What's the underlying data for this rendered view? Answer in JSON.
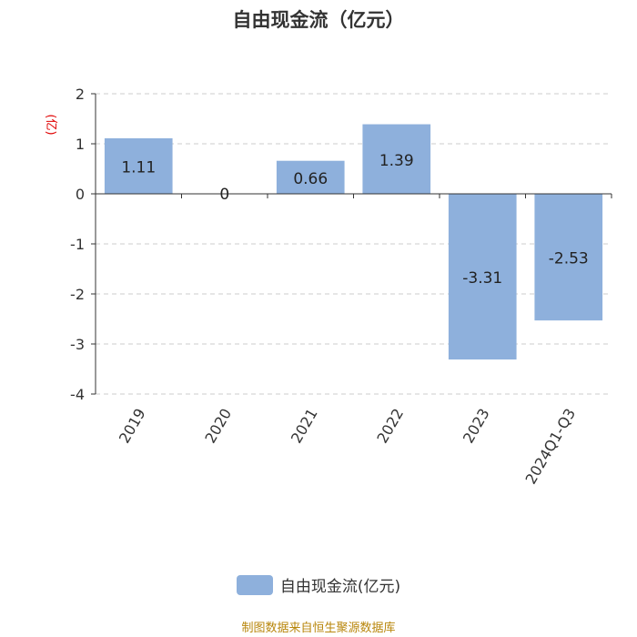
{
  "chart_data": {
    "type": "bar",
    "title": "自由现金流（亿元）",
    "ylabel": "(亿)",
    "categories": [
      "2019",
      "2020",
      "2021",
      "2022",
      "2023",
      "2024Q1-Q3"
    ],
    "series": [
      {
        "name": "自由现金流(亿元)",
        "values": [
          1.11,
          0,
          0.66,
          1.39,
          -3.31,
          -2.53
        ]
      }
    ],
    "data_labels": [
      "1.11",
      "0",
      "0.66",
      "1.39",
      "-3.31",
      "-2.53"
    ],
    "yticks": [
      "2",
      "1",
      "0",
      "-1",
      "-2",
      "-3",
      "-4"
    ],
    "ylim": [
      -4,
      2
    ],
    "grid": true,
    "legend_position": "bottom",
    "colors": {
      "bar": "#8eb0dc",
      "ylabel": "#e00000",
      "footer": "#b8860b"
    }
  },
  "footer": "制图数据来自恒生聚源数据库"
}
